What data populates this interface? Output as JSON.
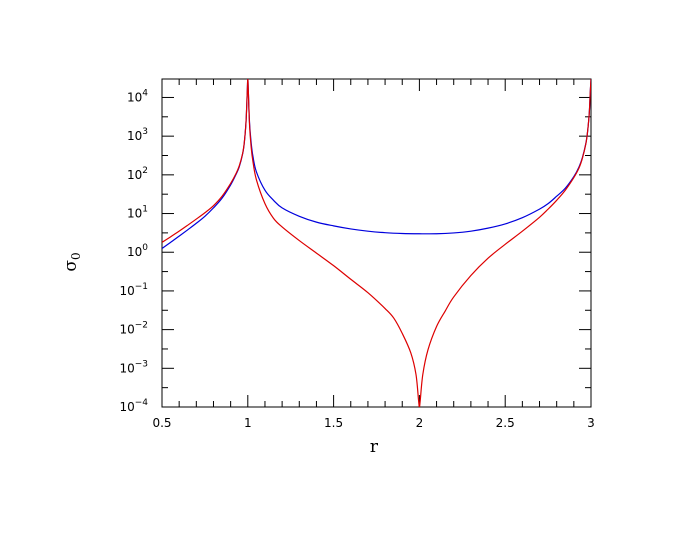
{
  "chart_data": {
    "type": "line",
    "xlabel": "r",
    "ylabel_base": "σ",
    "ylabel_sub": "0",
    "xlim": [
      0.5,
      3
    ],
    "ylim": [
      0.0001,
      30000
    ],
    "yscale": "log",
    "grid": false,
    "x_ticks": [
      {
        "value": 0.5,
        "label": "0.5"
      },
      {
        "value": 1,
        "label": "1"
      },
      {
        "value": 1.5,
        "label": "1.5"
      },
      {
        "value": 2,
        "label": "2"
      },
      {
        "value": 2.5,
        "label": "2.5"
      },
      {
        "value": 3,
        "label": "3"
      }
    ],
    "y_ticks": [
      {
        "value": 0.0001,
        "base": "10",
        "exp": "−4"
      },
      {
        "value": 0.001,
        "base": "10",
        "exp": "−3"
      },
      {
        "value": 0.01,
        "base": "10",
        "exp": "−2"
      },
      {
        "value": 0.1,
        "base": "10",
        "exp": "−1"
      },
      {
        "value": 1,
        "base": "10",
        "exp": "0"
      },
      {
        "value": 10,
        "base": "10",
        "exp": "1"
      },
      {
        "value": 100,
        "base": "10",
        "exp": "2"
      },
      {
        "value": 1000,
        "base": "10",
        "exp": "3"
      },
      {
        "value": 10000,
        "base": "10",
        "exp": "4"
      }
    ],
    "series": [
      {
        "color": "#0000dd",
        "points": [
          [
            0.5,
            1.25
          ],
          [
            0.55,
            1.8
          ],
          [
            0.6,
            2.6
          ],
          [
            0.65,
            3.8
          ],
          [
            0.7,
            5.6
          ],
          [
            0.75,
            8.5
          ],
          [
            0.8,
            14
          ],
          [
            0.85,
            25
          ],
          [
            0.9,
            55
          ],
          [
            0.93,
            100
          ],
          [
            0.95,
            160
          ],
          [
            0.97,
            350
          ],
          [
            0.98,
            700
          ],
          [
            0.99,
            2500
          ],
          [
            0.997,
            15000
          ],
          [
            1.0,
            30000
          ],
          [
            1.003,
            15000
          ],
          [
            1.01,
            2300
          ],
          [
            1.02,
            650
          ],
          [
            1.03,
            300
          ],
          [
            1.05,
            120
          ],
          [
            1.1,
            40
          ],
          [
            1.15,
            22
          ],
          [
            1.2,
            14
          ],
          [
            1.3,
            8.5
          ],
          [
            1.4,
            6
          ],
          [
            1.5,
            4.8
          ],
          [
            1.6,
            4.0
          ],
          [
            1.7,
            3.5
          ],
          [
            1.8,
            3.2
          ],
          [
            1.9,
            3.05
          ],
          [
            2.0,
            3.0
          ],
          [
            2.1,
            3.0
          ],
          [
            2.2,
            3.15
          ],
          [
            2.3,
            3.5
          ],
          [
            2.4,
            4.2
          ],
          [
            2.5,
            5.4
          ],
          [
            2.6,
            7.8
          ],
          [
            2.7,
            13
          ],
          [
            2.75,
            18
          ],
          [
            2.8,
            28
          ],
          [
            2.85,
            45
          ],
          [
            2.9,
            90
          ],
          [
            2.93,
            160
          ],
          [
            2.95,
            280
          ],
          [
            2.97,
            650
          ],
          [
            2.98,
            1300
          ],
          [
            2.99,
            4000
          ],
          [
            2.995,
            12000
          ],
          [
            3.0,
            30000
          ]
        ]
      },
      {
        "color": "#dd0000",
        "points": [
          [
            0.5,
            1.8
          ],
          [
            0.55,
            2.5
          ],
          [
            0.6,
            3.5
          ],
          [
            0.65,
            5.0
          ],
          [
            0.7,
            7.2
          ],
          [
            0.75,
            10.5
          ],
          [
            0.8,
            16
          ],
          [
            0.85,
            28
          ],
          [
            0.9,
            60
          ],
          [
            0.93,
            105
          ],
          [
            0.95,
            170
          ],
          [
            0.97,
            360
          ],
          [
            0.98,
            720
          ],
          [
            0.99,
            2500
          ],
          [
            0.997,
            15000
          ],
          [
            1.0,
            30000
          ],
          [
            1.003,
            15000
          ],
          [
            1.01,
            2000
          ],
          [
            1.02,
            500
          ],
          [
            1.03,
            220
          ],
          [
            1.05,
            75
          ],
          [
            1.1,
            18
          ],
          [
            1.15,
            7.5
          ],
          [
            1.2,
            4.5
          ],
          [
            1.3,
            2.0
          ],
          [
            1.4,
            0.95
          ],
          [
            1.5,
            0.45
          ],
          [
            1.6,
            0.2
          ],
          [
            1.7,
            0.09
          ],
          [
            1.8,
            0.035
          ],
          [
            1.85,
            0.02
          ],
          [
            1.9,
            0.008
          ],
          [
            1.95,
            0.0025
          ],
          [
            1.98,
            0.0007
          ],
          [
            1.995,
            0.00015
          ],
          [
            2.0,
            0.0001
          ],
          [
            2.005,
            0.00015
          ],
          [
            2.02,
            0.0007
          ],
          [
            2.05,
            0.003
          ],
          [
            2.1,
            0.012
          ],
          [
            2.15,
            0.03
          ],
          [
            2.2,
            0.07
          ],
          [
            2.3,
            0.25
          ],
          [
            2.4,
            0.7
          ],
          [
            2.5,
            1.6
          ],
          [
            2.6,
            3.5
          ],
          [
            2.7,
            8
          ],
          [
            2.75,
            13
          ],
          [
            2.8,
            22
          ],
          [
            2.85,
            40
          ],
          [
            2.9,
            85
          ],
          [
            2.93,
            150
          ],
          [
            2.95,
            270
          ],
          [
            2.97,
            630
          ],
          [
            2.98,
            1300
          ],
          [
            2.99,
            4000
          ],
          [
            2.995,
            12000
          ],
          [
            3.0,
            30000
          ]
        ]
      }
    ]
  }
}
